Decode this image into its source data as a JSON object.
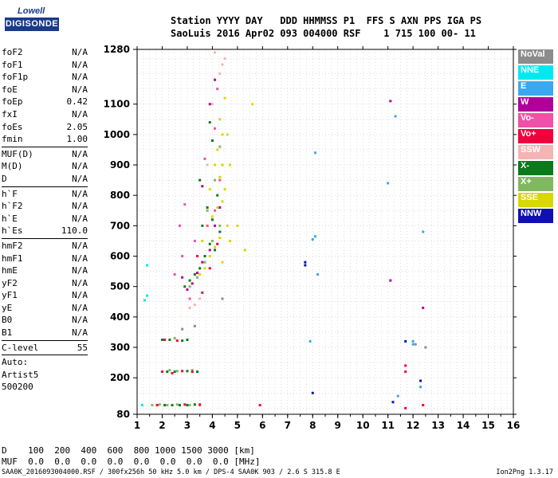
{
  "logo": {
    "line1": "Lowell",
    "line2": "DIGISONDE"
  },
  "header": {
    "line1": "Station YYYY DAY   DDD HHMMSS P1  FFS S AXN PPS IGA PS",
    "line2": "SaoLuis 2016 Apr02 093 004000 RSF    1 715 100 00- 11"
  },
  "params": {
    "group1": [
      {
        "label": "foF2",
        "value": "N/A"
      },
      {
        "label": "foF1",
        "value": "N/A"
      },
      {
        "label": "foF1p",
        "value": "N/A"
      },
      {
        "label": "foE",
        "value": "N/A"
      },
      {
        "label": "foEp",
        "value": "0.42"
      },
      {
        "label": "fxI",
        "value": "N/A"
      },
      {
        "label": "foEs",
        "value": "2.05"
      },
      {
        "label": "fmin",
        "value": "1.00"
      }
    ],
    "group2": [
      {
        "label": "MUF(D)",
        "value": "N/A"
      },
      {
        "label": "M(D)",
        "value": "N/A"
      },
      {
        "label": "D",
        "value": "N/A"
      }
    ],
    "group3": [
      {
        "label": "h`F",
        "value": "N/A"
      },
      {
        "label": "h`F2",
        "value": "N/A"
      },
      {
        "label": "h`E",
        "value": "N/A"
      },
      {
        "label": "h`Es",
        "value": "110.0"
      }
    ],
    "group4": [
      {
        "label": "hmF2",
        "value": "N/A"
      },
      {
        "label": "hmF1",
        "value": "N/A"
      },
      {
        "label": "hmE",
        "value": "N/A"
      },
      {
        "label": "yF2",
        "value": "N/A"
      },
      {
        "label": "yF1",
        "value": "N/A"
      },
      {
        "label": "yE",
        "value": "N/A"
      },
      {
        "label": "B0",
        "value": "N/A"
      },
      {
        "label": "B1",
        "value": "N/A"
      }
    ],
    "clevel": {
      "label": "C-level",
      "value": "55"
    },
    "auto": [
      "Auto:",
      "Artist5",
      "500200"
    ]
  },
  "legend": [
    {
      "label": "NoVal",
      "color": "#8c8c8c"
    },
    {
      "label": "NNE",
      "color": "#00e8f0"
    },
    {
      "label": "E",
      "color": "#3aa8f0"
    },
    {
      "label": "W",
      "color": "#b0009a"
    },
    {
      "label": "Vo-",
      "color": "#f050a8"
    },
    {
      "label": "Vo+",
      "color": "#f0003c"
    },
    {
      "label": "SSW",
      "color": "#f4b4b4"
    },
    {
      "label": "X-",
      "color": "#0a7a1a"
    },
    {
      "label": "X+",
      "color": "#80b860"
    },
    {
      "label": "SSE",
      "color": "#d8d800"
    },
    {
      "label": "NNW",
      "color": "#1010b0"
    }
  ],
  "footer": {
    "d_line": "D    100  200  400  600  800 1000 1500 3000 [km]",
    "muf_line": "MUF  0.0  0.0  0.0  0.0  0.0  0.0  0.0  0.0 [MHz]",
    "filename": "SAA0K_2016093004000.RSF / 300fx256h 50 kHz 5.0 km / DPS-4 SAA0K 903 / 2.6 S 315.8 E",
    "version": "Ion2Png 1.3.17"
  },
  "chart_data": {
    "type": "scatter",
    "title": "",
    "xlabel": "",
    "ylabel": "",
    "xlim": [
      1,
      16
    ],
    "ylim": [
      80,
      1280
    ],
    "x_ticks": [
      1,
      2,
      3,
      4,
      5,
      6,
      7,
      8,
      9,
      10,
      11,
      12,
      13,
      14,
      15,
      16
    ],
    "y_ticks": [
      80,
      200,
      300,
      400,
      500,
      600,
      700,
      800,
      900,
      1000,
      1100,
      1280
    ],
    "grid": true,
    "legend_position": "right",
    "series": [
      {
        "name": "X-",
        "points": [
          [
            2.1,
            110
          ],
          [
            2.4,
            110
          ],
          [
            2.7,
            110
          ],
          [
            3.0,
            110
          ],
          [
            3.3,
            112
          ],
          [
            2.2,
            220
          ],
          [
            2.5,
            220
          ],
          [
            3.0,
            222
          ],
          [
            3.4,
            220
          ],
          [
            2.0,
            325
          ],
          [
            2.3,
            325
          ],
          [
            2.8,
            322
          ],
          [
            3.0,
            325
          ],
          [
            2.9,
            500
          ],
          [
            3.1,
            520
          ],
          [
            3.3,
            540
          ],
          [
            3.5,
            560
          ],
          [
            3.7,
            600
          ],
          [
            3.9,
            640
          ],
          [
            4.1,
            620
          ],
          [
            3.6,
            700
          ],
          [
            4.0,
            720
          ],
          [
            4.3,
            680
          ],
          [
            3.8,
            760
          ],
          [
            4.2,
            800
          ],
          [
            3.5,
            850
          ],
          [
            4.4,
            900
          ],
          [
            4.0,
            980
          ],
          [
            3.9,
            1040
          ]
        ]
      },
      {
        "name": "X+",
        "points": [
          [
            1.6,
            110
          ],
          [
            1.9,
            112
          ],
          [
            2.2,
            110
          ],
          [
            2.6,
            112
          ],
          [
            3.1,
            110
          ],
          [
            3.5,
            110
          ],
          [
            2.3,
            225
          ],
          [
            2.6,
            222
          ],
          [
            3.2,
            225
          ],
          [
            2.5,
            330
          ],
          [
            3.1,
            500
          ],
          [
            3.4,
            530
          ],
          [
            3.7,
            580
          ],
          [
            4.0,
            650
          ],
          [
            4.3,
            700
          ],
          [
            3.8,
            750
          ],
          [
            4.1,
            850
          ],
          [
            4.3,
            960
          ]
        ]
      },
      {
        "name": "SSE",
        "points": [
          [
            3.5,
            540
          ],
          [
            3.7,
            560
          ],
          [
            3.9,
            600
          ],
          [
            4.1,
            630
          ],
          [
            4.3,
            660
          ],
          [
            3.8,
            700
          ],
          [
            4.0,
            730
          ],
          [
            4.2,
            760
          ],
          [
            4.4,
            780
          ],
          [
            4.5,
            820
          ],
          [
            4.3,
            860
          ],
          [
            4.4,
            900
          ],
          [
            4.2,
            950
          ],
          [
            4.4,
            1000
          ],
          [
            4.3,
            1050
          ],
          [
            4.5,
            1120
          ],
          [
            4.6,
            700
          ],
          [
            4.7,
            650
          ],
          [
            5.0,
            700
          ],
          [
            3.6,
            650
          ],
          [
            3.9,
            820
          ],
          [
            4.1,
            900
          ],
          [
            4.6,
            1000
          ],
          [
            4.7,
            900
          ],
          [
            5.6,
            1100
          ],
          [
            5.3,
            620
          ],
          [
            4.4,
            580
          ]
        ]
      },
      {
        "name": "W",
        "points": [
          [
            3.0,
            490
          ],
          [
            3.2,
            510
          ],
          [
            3.4,
            545
          ],
          [
            3.6,
            580
          ],
          [
            3.9,
            620
          ],
          [
            4.1,
            700
          ],
          [
            4.3,
            760
          ],
          [
            2.8,
            530
          ],
          [
            3.6,
            830
          ],
          [
            3.9,
            1100
          ],
          [
            4.1,
            1180
          ],
          [
            11.1,
            1110
          ],
          [
            12.4,
            430
          ],
          [
            11.1,
            520
          ]
        ]
      },
      {
        "name": "Vo-",
        "points": [
          [
            2.5,
            540
          ],
          [
            2.8,
            600
          ],
          [
            3.3,
            650
          ],
          [
            3.8,
            700
          ],
          [
            4.1,
            750
          ],
          [
            4.3,
            850
          ],
          [
            3.1,
            460
          ],
          [
            3.7,
            920
          ],
          [
            4.1,
            1020
          ],
          [
            4.2,
            1150
          ],
          [
            2.7,
            700
          ],
          [
            2.9,
            770
          ]
        ]
      },
      {
        "name": "Vo+",
        "points": [
          [
            2.0,
            220
          ],
          [
            2.4,
            215
          ],
          [
            2.8,
            222
          ],
          [
            3.2,
            220
          ],
          [
            2.1,
            325
          ],
          [
            2.6,
            322
          ],
          [
            1.8,
            110
          ],
          [
            2.9,
            112
          ],
          [
            3.5,
            112
          ],
          [
            3.6,
            480
          ],
          [
            3.9,
            560
          ],
          [
            4.2,
            640
          ],
          [
            3.4,
            600
          ],
          [
            5.9,
            110
          ],
          [
            11.7,
            240
          ],
          [
            11.7,
            220
          ],
          [
            12.4,
            110
          ],
          [
            11.7,
            100
          ]
        ]
      },
      {
        "name": "SSW",
        "points": [
          [
            3.1,
            430
          ],
          [
            3.3,
            440
          ],
          [
            3.5,
            460
          ],
          [
            3.8,
            900
          ],
          [
            4.0,
            1100
          ],
          [
            4.3,
            1200
          ],
          [
            4.5,
            1250
          ],
          [
            4.1,
            1270
          ],
          [
            4.4,
            1230
          ]
        ]
      },
      {
        "name": "NNE",
        "points": [
          [
            1.4,
            570
          ],
          [
            1.4,
            470
          ],
          [
            1.3,
            455
          ],
          [
            1.2,
            110
          ]
        ]
      },
      {
        "name": "E",
        "points": [
          [
            7.9,
            320
          ],
          [
            8.0,
            655
          ],
          [
            8.1,
            665
          ],
          [
            8.2,
            540
          ],
          [
            8.1,
            940
          ],
          [
            11.0,
            840
          ],
          [
            11.3,
            1060
          ],
          [
            12.0,
            310
          ],
          [
            12.0,
            320
          ],
          [
            12.4,
            680
          ],
          [
            12.3,
            170
          ],
          [
            11.4,
            140
          ]
        ]
      },
      {
        "name": "NNW",
        "points": [
          [
            7.7,
            570
          ],
          [
            7.7,
            580
          ],
          [
            8.0,
            150
          ],
          [
            11.7,
            320
          ],
          [
            12.3,
            190
          ],
          [
            11.2,
            120
          ]
        ]
      },
      {
        "name": "NoVal",
        "points": [
          [
            12.1,
            310
          ],
          [
            12.5,
            300
          ],
          [
            4.4,
            460
          ],
          [
            3.3,
            370
          ],
          [
            2.8,
            360
          ]
        ]
      }
    ]
  }
}
